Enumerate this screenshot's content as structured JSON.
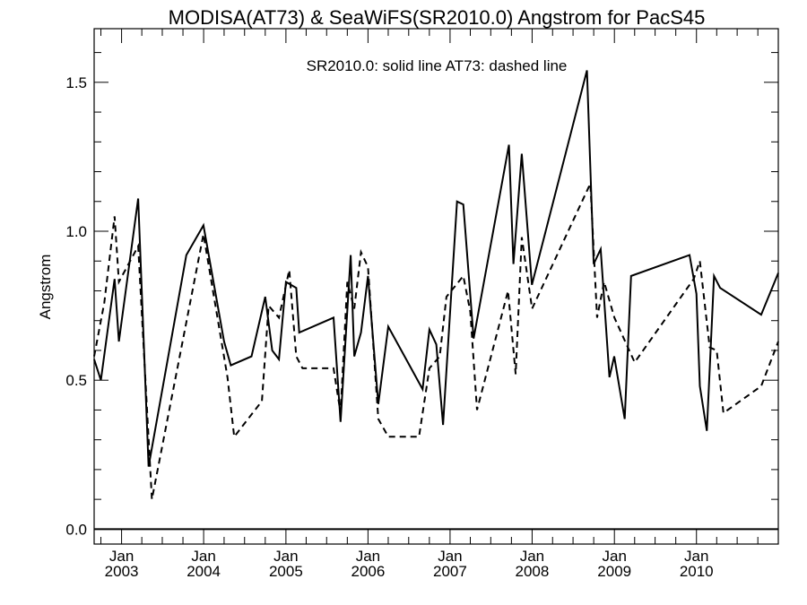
{
  "chart_data": {
    "type": "line",
    "title": "MODISA(AT73) & SeaWiFS(SR2010.0)  Angstrom for PacS45",
    "annotation": "SR2010.0: solid line   AT73: dashed line",
    "ylabel": "Angstrom",
    "xlabel": "",
    "xlim": [
      "2002-09-01",
      "2010-12-31"
    ],
    "ylim": [
      -0.05,
      1.68
    ],
    "yticks": [
      0.0,
      0.5,
      1.0,
      1.5
    ],
    "ytick_labels": [
      "0.0",
      "0.5",
      "1.0",
      "1.5"
    ],
    "xticks": [
      "2003-01-01",
      "2004-01-01",
      "2005-01-01",
      "2006-01-01",
      "2007-01-01",
      "2008-01-01",
      "2009-01-01",
      "2010-01-01"
    ],
    "xtick_labels": [
      {
        "month": "Jan",
        "year": "2003"
      },
      {
        "month": "Jan",
        "year": "2004"
      },
      {
        "month": "Jan",
        "year": "2005"
      },
      {
        "month": "Jan",
        "year": "2006"
      },
      {
        "month": "Jan",
        "year": "2007"
      },
      {
        "month": "Jan",
        "year": "2008"
      },
      {
        "month": "Jan",
        "year": "2009"
      },
      {
        "month": "Jan",
        "year": "2010"
      }
    ],
    "reference_line": 0.0,
    "grid": false,
    "series": [
      {
        "name": "SR2010.0",
        "style": "solid",
        "color": "#000000",
        "points": [
          [
            "2002-09-01",
            0.57
          ],
          [
            "2002-10-01",
            0.5
          ],
          [
            "2002-12-01",
            0.84
          ],
          [
            "2002-12-20",
            0.63
          ],
          [
            "2003-03-16",
            1.11
          ],
          [
            "2003-05-01",
            0.21
          ],
          [
            "2003-10-16",
            0.92
          ],
          [
            "2003-12-31",
            1.02
          ],
          [
            "2004-04-01",
            0.63
          ],
          [
            "2004-05-01",
            0.55
          ],
          [
            "2004-08-01",
            0.58
          ],
          [
            "2004-10-01",
            0.78
          ],
          [
            "2004-11-01",
            0.6
          ],
          [
            "2004-12-01",
            0.57
          ],
          [
            "2005-01-01",
            0.83
          ],
          [
            "2005-02-16",
            0.81
          ],
          [
            "2005-03-01",
            0.66
          ],
          [
            "2005-08-01",
            0.71
          ],
          [
            "2005-09-01",
            0.36
          ],
          [
            "2005-10-16",
            0.92
          ],
          [
            "2005-11-01",
            0.58
          ],
          [
            "2005-12-01",
            0.66
          ],
          [
            "2006-01-01",
            0.85
          ],
          [
            "2006-02-16",
            0.42
          ],
          [
            "2006-04-01",
            0.68
          ],
          [
            "2006-09-01",
            0.47
          ],
          [
            "2006-10-01",
            0.67
          ],
          [
            "2006-11-01",
            0.62
          ],
          [
            "2006-12-01",
            0.35
          ],
          [
            "2007-02-01",
            1.1
          ],
          [
            "2007-03-01",
            1.09
          ],
          [
            "2007-04-16",
            0.64
          ],
          [
            "2007-09-20",
            1.29
          ],
          [
            "2007-10-10",
            0.89
          ],
          [
            "2007-11-16",
            1.26
          ],
          [
            "2007-12-31",
            0.82
          ],
          [
            "2008-09-01",
            1.54
          ],
          [
            "2008-10-01",
            0.89
          ],
          [
            "2008-11-01",
            0.94
          ],
          [
            "2008-12-10",
            0.51
          ],
          [
            "2008-12-31",
            0.58
          ],
          [
            "2009-02-16",
            0.37
          ],
          [
            "2009-03-16",
            0.85
          ],
          [
            "2009-12-01",
            0.92
          ],
          [
            "2010-01-01",
            0.79
          ],
          [
            "2010-01-16",
            0.48
          ],
          [
            "2010-02-16",
            0.33
          ],
          [
            "2010-03-20",
            0.85
          ],
          [
            "2010-04-16",
            0.81
          ],
          [
            "2010-10-16",
            0.72
          ],
          [
            "2010-12-31",
            0.86
          ]
        ]
      },
      {
        "name": "AT73",
        "style": "dashed",
        "color": "#000000",
        "points": [
          [
            "2002-09-01",
            0.58
          ],
          [
            "2002-10-16",
            0.76
          ],
          [
            "2002-12-01",
            1.05
          ],
          [
            "2002-12-20",
            0.83
          ],
          [
            "2003-03-16",
            0.95
          ],
          [
            "2003-05-16",
            0.1
          ],
          [
            "2003-12-31",
            0.99
          ],
          [
            "2004-04-16",
            0.51
          ],
          [
            "2004-05-16",
            0.31
          ],
          [
            "2004-09-16",
            0.43
          ],
          [
            "2004-10-16",
            0.75
          ],
          [
            "2004-12-01",
            0.71
          ],
          [
            "2005-01-16",
            0.87
          ],
          [
            "2005-02-16",
            0.58
          ],
          [
            "2005-03-16",
            0.54
          ],
          [
            "2005-08-01",
            0.54
          ],
          [
            "2005-09-01",
            0.39
          ],
          [
            "2005-10-01",
            0.83
          ],
          [
            "2005-11-01",
            0.74
          ],
          [
            "2005-12-01",
            0.93
          ],
          [
            "2006-01-01",
            0.88
          ],
          [
            "2006-02-16",
            0.37
          ],
          [
            "2006-04-01",
            0.31
          ],
          [
            "2006-08-16",
            0.31
          ],
          [
            "2006-10-01",
            0.54
          ],
          [
            "2006-11-16",
            0.58
          ],
          [
            "2006-12-16",
            0.78
          ],
          [
            "2007-03-01",
            0.85
          ],
          [
            "2007-04-01",
            0.73
          ],
          [
            "2007-05-01",
            0.4
          ],
          [
            "2007-09-16",
            0.8
          ],
          [
            "2007-10-20",
            0.52
          ],
          [
            "2007-11-16",
            0.98
          ],
          [
            "2008-01-01",
            0.74
          ],
          [
            "2008-09-16",
            1.16
          ],
          [
            "2008-10-16",
            0.71
          ],
          [
            "2008-11-16",
            0.83
          ],
          [
            "2009-01-01",
            0.71
          ],
          [
            "2009-04-01",
            0.56
          ],
          [
            "2009-12-20",
            0.84
          ],
          [
            "2010-01-16",
            0.9
          ],
          [
            "2010-03-01",
            0.61
          ],
          [
            "2010-04-01",
            0.6
          ],
          [
            "2010-05-01",
            0.39
          ],
          [
            "2010-10-16",
            0.48
          ],
          [
            "2010-12-31",
            0.63
          ]
        ]
      }
    ]
  }
}
